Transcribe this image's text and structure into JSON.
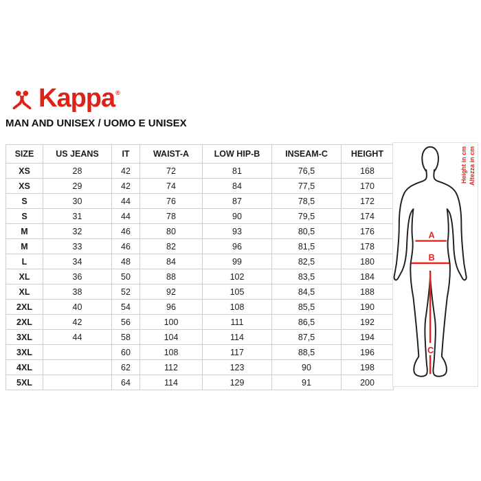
{
  "brand": {
    "logo_text": "Kappa",
    "registered_mark": "®",
    "logo_color": "#dd2318"
  },
  "heading": "MAN AND UNISEX / UOMO E UNISEX",
  "table": {
    "columns": [
      "SIZE",
      "US JEANS",
      "IT",
      "WAIST-A",
      "LOW HIP-B",
      "INSEAM-C",
      "HEIGHT"
    ],
    "rows": [
      [
        "XS",
        "28",
        "42",
        "72",
        "81",
        "76,5",
        "168"
      ],
      [
        "XS",
        "29",
        "42",
        "74",
        "84",
        "77,5",
        "170"
      ],
      [
        "S",
        "30",
        "44",
        "76",
        "87",
        "78,5",
        "172"
      ],
      [
        "S",
        "31",
        "44",
        "78",
        "90",
        "79,5",
        "174"
      ],
      [
        "M",
        "32",
        "46",
        "80",
        "93",
        "80,5",
        "176"
      ],
      [
        "M",
        "33",
        "46",
        "82",
        "96",
        "81,5",
        "178"
      ],
      [
        "L",
        "34",
        "48",
        "84",
        "99",
        "82,5",
        "180"
      ],
      [
        "XL",
        "36",
        "50",
        "88",
        "102",
        "83,5",
        "184"
      ],
      [
        "XL",
        "38",
        "52",
        "92",
        "105",
        "84,5",
        "188"
      ],
      [
        "2XL",
        "40",
        "54",
        "96",
        "108",
        "85,5",
        "190"
      ],
      [
        "2XL",
        "42",
        "56",
        "100",
        "111",
        "86,5",
        "192"
      ],
      [
        "3XL",
        "44",
        "58",
        "104",
        "114",
        "87,5",
        "194"
      ],
      [
        "3XL",
        "",
        "60",
        "108",
        "117",
        "88,5",
        "196"
      ],
      [
        "4XL",
        "",
        "62",
        "112",
        "123",
        "90",
        "198"
      ],
      [
        "5XL",
        "",
        "64",
        "114",
        "129",
        "91",
        "200"
      ]
    ]
  },
  "figure": {
    "label_a": "A",
    "label_b": "B",
    "label_c": "C",
    "vertical_text_en": "Height in cm",
    "vertical_text_it": "Altezza in cm",
    "accent_color": "#e8211d"
  }
}
